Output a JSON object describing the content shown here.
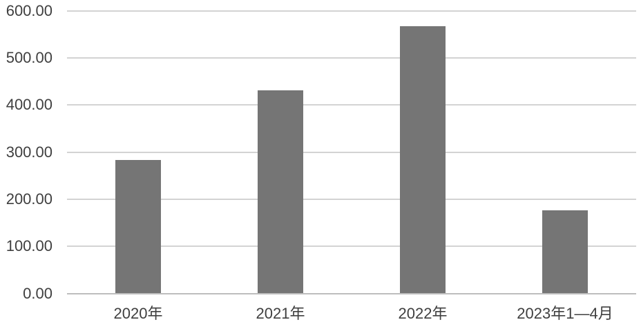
{
  "chart_data": {
    "type": "bar",
    "title": "",
    "xlabel": "",
    "ylabel": "",
    "categories": [
      "2020年",
      "2021年",
      "2022年",
      "2023年1—4月"
    ],
    "values": [
      283,
      431,
      567,
      177
    ],
    "ylim": [
      0,
      600
    ],
    "ytick_step": 100,
    "ytick_labels": [
      "0.00",
      "100.00",
      "200.00",
      "300.00",
      "400.00",
      "500.00",
      "600.00"
    ],
    "grid": true,
    "legend": "none",
    "colors": {
      "bar_fill": "#757575",
      "gridline": "#d3d3d3",
      "axis_line": "#bdbdbd",
      "text": "#3f3f3f",
      "background": "#ffffff"
    }
  }
}
